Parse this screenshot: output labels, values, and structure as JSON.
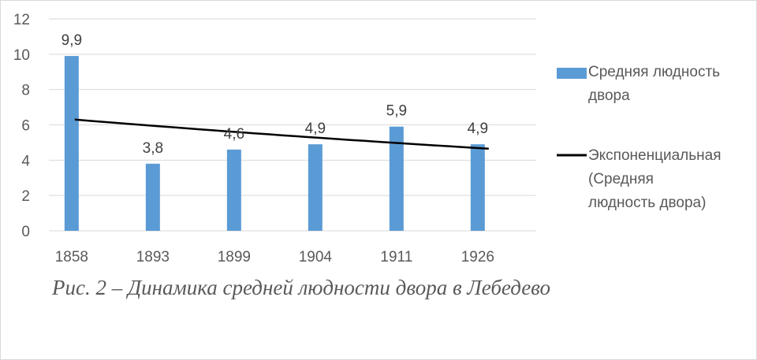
{
  "chart_data": {
    "type": "bar",
    "categories": [
      "1858",
      "1893",
      "1899",
      "1904",
      "1911",
      "1926"
    ],
    "series": [
      {
        "name": "Средняя людность двора",
        "values": [
          9.9,
          3.8,
          4.6,
          4.9,
          5.9,
          4.9
        ],
        "data_labels": [
          "9,9",
          "3,8",
          "4,6",
          "4,9",
          "5,9",
          "4,9"
        ]
      }
    ],
    "trendline": {
      "name": "Экспоненциальная (Средняя людность двора)",
      "type": "exponential",
      "start_value": 6.3,
      "end_value": 4.65
    },
    "yticks": [
      "0",
      "2",
      "4",
      "6",
      "8",
      "10",
      "12"
    ],
    "ylim": [
      0,
      12
    ],
    "grid": true,
    "legend_position": "right",
    "colors": {
      "bar": "#5b9bd5",
      "trend": "#000000",
      "grid": "#d9d9d9",
      "text": "#595959"
    }
  },
  "legend": {
    "bar_label": "Средняя людность\nдвора",
    "trend_label": "Экспоненциальная\n(Средняя\nлюдность двора)"
  },
  "caption": "Рис. 2 – Динамика средней людности двора в Лебедево"
}
